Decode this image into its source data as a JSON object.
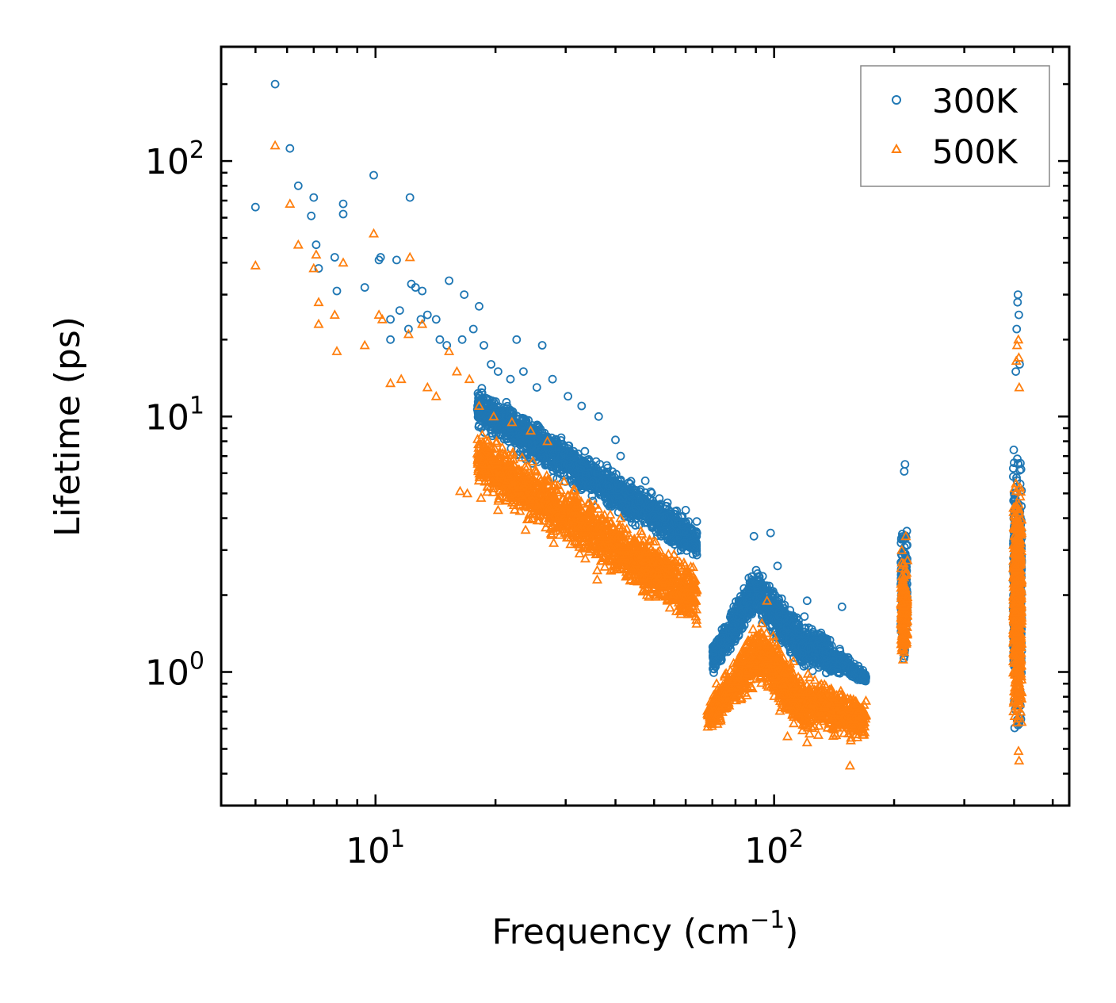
{
  "chart_data": {
    "type": "scatter",
    "title": "",
    "xlabel": "Frequency (cm",
    "xlabel_sup": "−1",
    "xlabel_close": ")",
    "ylabel": "Lifetime (ps)",
    "xscale": "log",
    "yscale": "log",
    "xlim": [
      4.1,
      550
    ],
    "ylim": [
      0.3,
      280
    ],
    "x_ticks": [
      {
        "value": 10,
        "base": "10",
        "exp": "1"
      },
      {
        "value": 100,
        "base": "10",
        "exp": "2"
      }
    ],
    "y_ticks": [
      {
        "value": 1,
        "base": "10",
        "exp": "0"
      },
      {
        "value": 10,
        "base": "10",
        "exp": "1"
      },
      {
        "value": 100,
        "base": "10",
        "exp": "2"
      }
    ],
    "legend_position": "top-right",
    "series": [
      {
        "name": "300K",
        "marker": "circle",
        "color": "#1f77b4",
        "points": [
          [
            5.6,
            200
          ],
          [
            6.1,
            112
          ],
          [
            5.0,
            66
          ],
          [
            6.4,
            80
          ],
          [
            7.0,
            72
          ],
          [
            6.9,
            61
          ],
          [
            8.3,
            68
          ],
          [
            8.3,
            62
          ],
          [
            7.1,
            47
          ],
          [
            7.9,
            42
          ],
          [
            7.2,
            38
          ],
          [
            8.0,
            31
          ],
          [
            9.4,
            32
          ],
          [
            9.9,
            88
          ],
          [
            10.3,
            42
          ],
          [
            10.2,
            41
          ],
          [
            11.3,
            41
          ],
          [
            12.2,
            72
          ],
          [
            12.3,
            33
          ],
          [
            12.6,
            32
          ],
          [
            13.1,
            31
          ],
          [
            11.5,
            26
          ],
          [
            10.9,
            24
          ],
          [
            12.1,
            22
          ],
          [
            13.0,
            24
          ],
          [
            13.5,
            25
          ],
          [
            14.2,
            24
          ],
          [
            15.3,
            34
          ],
          [
            16.7,
            30
          ],
          [
            18.2,
            27
          ],
          [
            10.9,
            20
          ],
          [
            14.5,
            20
          ],
          [
            15.1,
            19
          ],
          [
            16.5,
            20
          ],
          [
            17.6,
            22
          ],
          [
            18.7,
            19
          ],
          [
            19.5,
            16
          ],
          [
            22.6,
            20
          ],
          [
            26.2,
            19
          ],
          [
            20.3,
            15
          ],
          [
            21.8,
            14
          ],
          [
            23.5,
            15
          ],
          [
            25.4,
            13
          ],
          [
            27.8,
            14
          ],
          [
            30.4,
            12
          ],
          [
            32.9,
            11
          ],
          [
            36.3,
            10
          ],
          [
            41.2,
            7.0
          ],
          [
            40.0,
            8.1
          ],
          [
            47.5,
            5.6
          ],
          [
            54.0,
            4.6
          ],
          [
            60.0,
            4.3
          ],
          [
            64.0,
            3.5
          ],
          [
            89.0,
            3.4
          ],
          [
            98.0,
            3.5
          ],
          [
            102.0,
            2.6
          ],
          [
            121.0,
            1.9
          ],
          [
            148.0,
            1.8
          ],
          [
            213.0,
            6.5
          ],
          [
            212.0,
            6.1
          ],
          [
            409.0,
            30.0
          ],
          [
            408.0,
            28.0
          ],
          [
            411.0,
            25.0
          ],
          [
            406.0,
            22.0
          ],
          [
            413.0,
            16.0
          ],
          [
            404.0,
            15.0
          ]
        ],
        "bands": [
          {
            "x": [
              18.0,
              64.0
            ],
            "y0": [
              14.0,
              4.0
            ],
            "y1": [
              8.5,
              2.6
            ],
            "n": 1700
          },
          {
            "x": [
              70.0,
              90.0
            ],
            "y0": [
              1.3,
              2.7
            ],
            "y1": [
              0.95,
              1.6
            ],
            "n": 500
          },
          {
            "x": [
              90.0,
              118.0
            ],
            "y0": [
              2.7,
              1.6
            ],
            "y1": [
              1.6,
              1.0
            ],
            "n": 550
          },
          {
            "x": [
              118.0,
              170.0
            ],
            "y0": [
              1.75,
              1.0
            ],
            "y1": [
              1.0,
              0.9
            ],
            "n": 450
          },
          {
            "x": [
              208.0,
              216.0
            ],
            "y0": [
              4.5,
              4.5
            ],
            "y1": [
              1.0,
              1.0
            ],
            "n": 180
          },
          {
            "x": [
              398.0,
              418.0
            ],
            "y0": [
              9.0,
              9.0
            ],
            "y1": [
              0.45,
              0.45
            ],
            "n": 520
          }
        ]
      },
      {
        "name": "500K",
        "marker": "triangle",
        "color": "#ff7f0e",
        "points": [
          [
            5.6,
            115
          ],
          [
            6.1,
            68
          ],
          [
            5.0,
            39
          ],
          [
            6.4,
            47
          ],
          [
            7.1,
            43
          ],
          [
            8.3,
            40
          ],
          [
            7.0,
            38
          ],
          [
            7.9,
            25
          ],
          [
            7.2,
            28
          ],
          [
            7.2,
            23
          ],
          [
            8.0,
            18
          ],
          [
            9.4,
            19
          ],
          [
            9.9,
            52
          ],
          [
            10.2,
            25
          ],
          [
            10.4,
            24
          ],
          [
            10.9,
            13.5
          ],
          [
            11.6,
            14.0
          ],
          [
            12.2,
            42
          ],
          [
            12.1,
            21
          ],
          [
            13.1,
            23
          ],
          [
            13.5,
            13
          ],
          [
            14.2,
            12
          ],
          [
            15.3,
            18
          ],
          [
            16.0,
            15
          ],
          [
            17.2,
            14
          ],
          [
            18.2,
            11
          ],
          [
            19.8,
            10
          ],
          [
            22.0,
            9.5
          ],
          [
            24.5,
            8.8
          ],
          [
            27.0,
            8.0
          ],
          [
            16.3,
            5.1
          ],
          [
            17.0,
            5.0
          ],
          [
            18.4,
            4.8
          ],
          [
            20.3,
            4.3
          ],
          [
            23.8,
            3.6
          ],
          [
            28.0,
            3.2
          ],
          [
            36.0,
            2.5
          ],
          [
            36.0,
            2.3
          ],
          [
            41.2,
            4.0
          ],
          [
            43.8,
            2.3
          ],
          [
            48.0,
            2.0
          ],
          [
            54.0,
            1.9
          ],
          [
            96.0,
            1.9
          ],
          [
            108.0,
            0.56
          ],
          [
            121.0,
            0.53
          ],
          [
            155.0,
            0.43
          ],
          [
            214.0,
            3.4
          ],
          [
            209.0,
            3.0
          ],
          [
            410.0,
            20.0
          ],
          [
            407.0,
            19.0
          ],
          [
            411.0,
            17.0
          ],
          [
            405.0,
            16.5
          ],
          [
            412.0,
            13.0
          ]
        ],
        "bands": [
          {
            "x": [
              18.0,
              64.0
            ],
            "y0": [
              9.5,
              2.7
            ],
            "y1": [
              5.0,
              1.4
            ],
            "n": 1700
          },
          {
            "x": [
              68.0,
              92.0
            ],
            "y0": [
              0.8,
              1.7
            ],
            "y1": [
              0.55,
              0.85
            ],
            "n": 500
          },
          {
            "x": [
              92.0,
              118.0
            ],
            "y0": [
              1.7,
              1.0
            ],
            "y1": [
              0.85,
              0.55
            ],
            "n": 520
          },
          {
            "x": [
              118.0,
              170.0
            ],
            "y0": [
              1.1,
              0.8
            ],
            "y1": [
              0.55,
              0.52
            ],
            "n": 450
          },
          {
            "x": [
              208.0,
              216.0
            ],
            "y0": [
              3.0,
              3.0
            ],
            "y1": [
              0.95,
              0.95
            ],
            "n": 180
          },
          {
            "x": [
              398.0,
              418.0
            ],
            "y0": [
              7.5,
              7.5
            ],
            "y1": [
              0.41,
              0.41
            ],
            "n": 520
          }
        ]
      }
    ]
  }
}
